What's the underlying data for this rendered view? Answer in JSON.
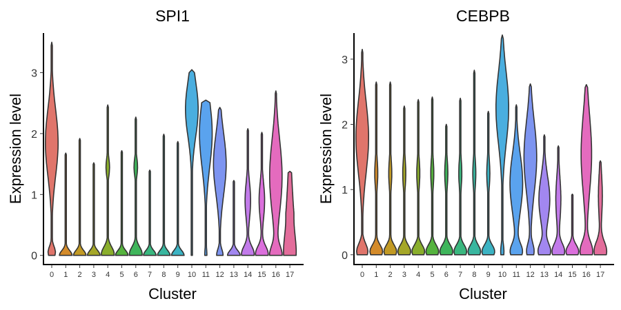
{
  "chart_data": [
    {
      "type": "violin",
      "title": "SPI1",
      "xlabel": "Cluster",
      "ylabel": "Expression level",
      "categories": [
        "0",
        "1",
        "2",
        "3",
        "4",
        "5",
        "6",
        "7",
        "8",
        "9",
        "10",
        "11",
        "12",
        "13",
        "14",
        "15",
        "16",
        "17"
      ],
      "yticks": [
        0,
        1,
        2,
        3
      ],
      "ylim": [
        -0.15,
        3.65
      ],
      "colors": [
        "#E0756B",
        "#D48B2A",
        "#C29A24",
        "#A5A728",
        "#8AAE2C",
        "#55B33E",
        "#3FB55B",
        "#3AB77F",
        "#39B69F",
        "#3CB3C3",
        "#4AAEDF",
        "#5AA3EE",
        "#7D94F0",
        "#A287F0",
        "#C27BEA",
        "#DB6FDC",
        "#E46BBE",
        "#E36D9B"
      ],
      "max_values": [
        3.5,
        1.68,
        1.92,
        1.52,
        2.47,
        1.72,
        2.27,
        1.4,
        1.99,
        1.87,
        3.05,
        2.55,
        2.43,
        1.23,
        2.08,
        2.02,
        2.7,
        1.38
      ]
    },
    {
      "type": "violin",
      "title": "CEBPB",
      "xlabel": "Cluster",
      "ylabel": "Expression level",
      "categories": [
        "0",
        "1",
        "2",
        "3",
        "4",
        "5",
        "6",
        "7",
        "8",
        "9",
        "10",
        "11",
        "12",
        "13",
        "14",
        "15",
        "16",
        "17"
      ],
      "yticks": [
        0,
        1,
        2,
        3
      ],
      "ylim": [
        -0.15,
        3.4
      ],
      "colors": [
        "#E0756B",
        "#D48B2A",
        "#C29A24",
        "#A5A728",
        "#8AAE2C",
        "#55B33E",
        "#3FB55B",
        "#3AB77F",
        "#39B69F",
        "#3CB3C3",
        "#4AAEDF",
        "#5AA3EE",
        "#7D94F0",
        "#A287F0",
        "#C27BEA",
        "#DB6FDC",
        "#E46BBE",
        "#E36D9B"
      ],
      "max_values": [
        3.15,
        2.65,
        2.65,
        2.28,
        2.38,
        2.42,
        2.0,
        2.4,
        2.83,
        2.2,
        3.37,
        2.3,
        2.62,
        1.84,
        1.67,
        0.93,
        2.61,
        1.44
      ]
    }
  ]
}
